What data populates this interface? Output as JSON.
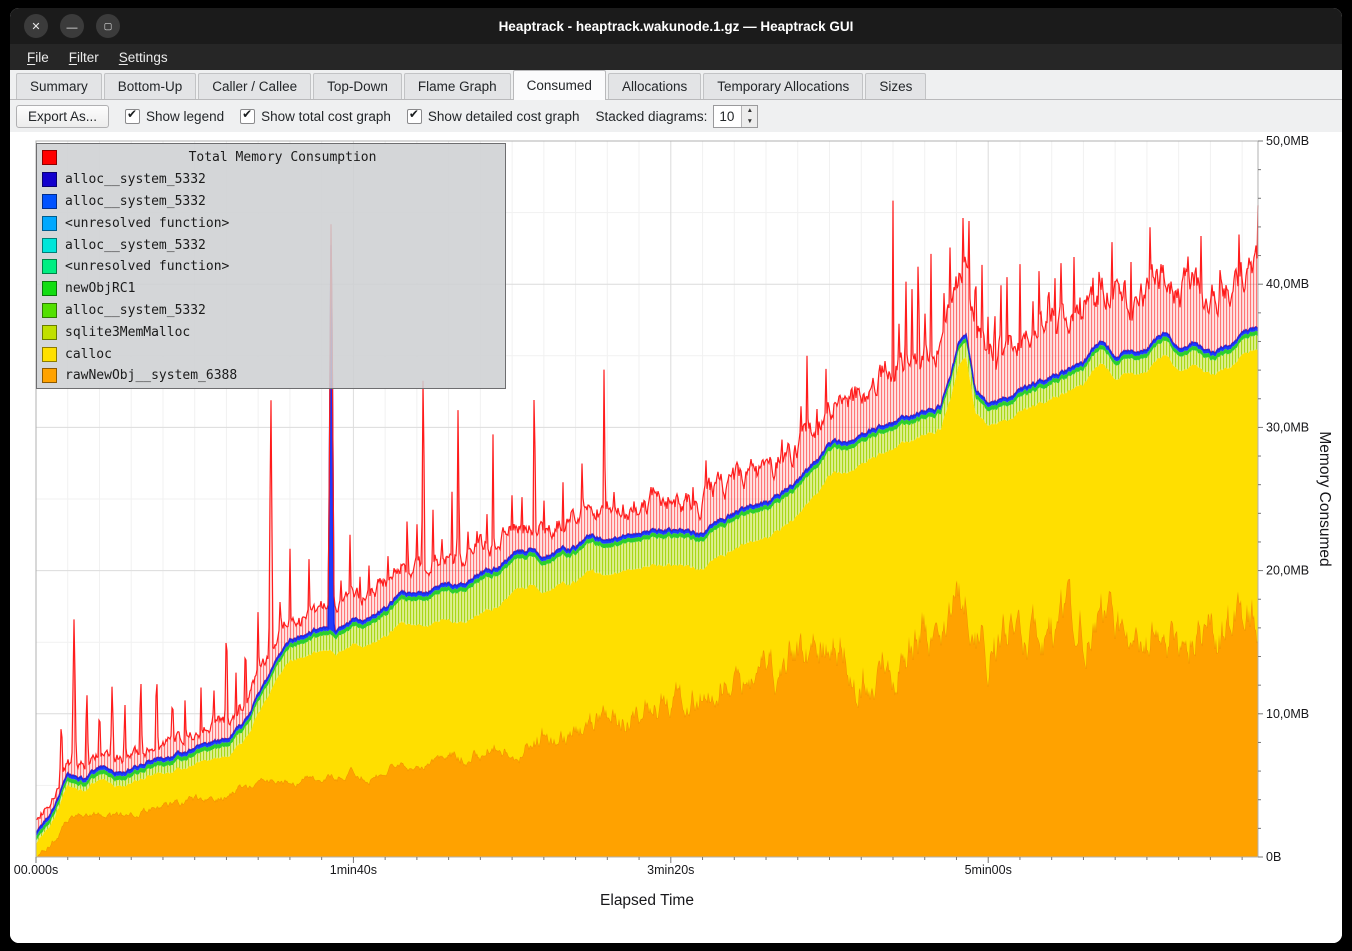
{
  "window": {
    "title": "Heaptrack - heaptrack.wakunode.1.gz — Heaptrack GUI",
    "controls": {
      "close": "✕",
      "minimize": "—",
      "maximize": "▢"
    }
  },
  "menu": {
    "items": [
      {
        "key": "F",
        "rest": "ile"
      },
      {
        "key": "F",
        "rest": "ilter"
      },
      {
        "key": "S",
        "rest": "ettings"
      }
    ]
  },
  "tabs": [
    {
      "label": "Summary"
    },
    {
      "label": "Bottom-Up"
    },
    {
      "label": "Caller / Callee"
    },
    {
      "label": "Top-Down"
    },
    {
      "label": "Flame Graph"
    },
    {
      "label": "Consumed",
      "active": true
    },
    {
      "label": "Allocations"
    },
    {
      "label": "Temporary Allocations"
    },
    {
      "label": "Sizes"
    }
  ],
  "toolbar": {
    "export_label": "Export As...",
    "checkboxes": [
      {
        "label": "Show legend",
        "checked": true
      },
      {
        "label": "Show total cost graph",
        "checked": true
      },
      {
        "label": "Show detailed cost graph",
        "checked": true
      }
    ],
    "stacked_label": "Stacked diagrams:",
    "stacked_value": "10",
    "spin_up": "▲",
    "spin_down": "▼"
  },
  "legend": {
    "title": "Total Memory Consumption",
    "title_color": "#ff0000",
    "items": [
      {
        "label": "alloc__system_5332",
        "color": "#1300cd"
      },
      {
        "label": "alloc__system_5332",
        "color": "#0052ff"
      },
      {
        "label": "<unresolved function>",
        "color": "#00a8ff"
      },
      {
        "label": "alloc__system_5332",
        "color": "#00e6d9"
      },
      {
        "label": "<unresolved function>",
        "color": "#00ee82"
      },
      {
        "label": "newObjRC1",
        "color": "#12dd12"
      },
      {
        "label": "alloc__system_5332",
        "color": "#52e000"
      },
      {
        "label": "sqlite3MemMalloc",
        "color": "#c0e000"
      },
      {
        "label": "calloc",
        "color": "#ffe000"
      },
      {
        "label": "rawNewObj__system_6388",
        "color": "#ffa200"
      }
    ]
  },
  "axes": {
    "x_title": "Elapsed Time",
    "y_title": "Memory Consumed",
    "x_ticks": [
      {
        "label": "00.000s",
        "t": 0
      },
      {
        "label": "1min40s",
        "t": 100
      },
      {
        "label": "3min20s",
        "t": 200
      },
      {
        "label": "5min00s",
        "t": 300
      }
    ],
    "y_ticks": [
      {
        "label": "0B",
        "mb": 0
      },
      {
        "label": "10,0MB",
        "mb": 10
      },
      {
        "label": "20,0MB",
        "mb": 20
      },
      {
        "label": "30,0MB",
        "mb": 30
      },
      {
        "label": "40,0MB",
        "mb": 40
      },
      {
        "label": "50,0MB",
        "mb": 50
      }
    ]
  },
  "chart_data": {
    "type": "area",
    "stacked": true,
    "t_max": 385,
    "y_max_mb": 50,
    "layer_order_bottom_to_top": [
      "rawNewObj__system_6388",
      "calloc",
      "sqlite3MemMalloc",
      "greens and cyans (thin bands)",
      "alloc__system blues (thin line)",
      "Total Memory Consumption (red, spiky)"
    ],
    "orange_top_mb": [
      [
        0,
        0
      ],
      [
        3,
        0.6
      ],
      [
        8,
        2
      ],
      [
        12,
        3
      ],
      [
        20,
        3
      ],
      [
        25,
        2.6
      ],
      [
        30,
        3
      ],
      [
        40,
        3.5
      ],
      [
        50,
        4
      ],
      [
        60,
        4.2
      ],
      [
        65,
        5
      ],
      [
        70,
        5
      ],
      [
        75,
        5.5
      ],
      [
        80,
        5
      ],
      [
        85,
        5.5
      ],
      [
        90,
        5.2
      ],
      [
        95,
        5.6
      ],
      [
        100,
        6
      ],
      [
        105,
        5.6
      ],
      [
        110,
        6
      ],
      [
        115,
        6.6
      ],
      [
        120,
        6.2
      ],
      [
        125,
        6.6
      ],
      [
        130,
        7
      ],
      [
        140,
        7.2
      ],
      [
        145,
        8
      ],
      [
        150,
        7.6
      ],
      [
        155,
        8
      ],
      [
        160,
        8.6
      ],
      [
        165,
        8.2
      ],
      [
        170,
        9
      ],
      [
        175,
        9.2
      ],
      [
        180,
        9.6
      ],
      [
        185,
        10
      ],
      [
        190,
        10.5
      ],
      [
        195,
        11
      ],
      [
        200,
        11.2
      ],
      [
        205,
        11.6
      ],
      [
        210,
        12
      ],
      [
        215,
        12.5
      ],
      [
        220,
        13
      ],
      [
        225,
        12.2
      ],
      [
        230,
        12.6
      ],
      [
        235,
        13.2
      ],
      [
        240,
        14
      ],
      [
        245,
        15
      ],
      [
        250,
        16
      ],
      [
        253,
        14.2
      ],
      [
        256,
        15
      ],
      [
        260,
        13.2
      ],
      [
        265,
        13.6
      ],
      [
        270,
        13.2
      ],
      [
        275,
        14
      ],
      [
        280,
        16
      ],
      [
        285,
        17
      ],
      [
        290,
        18
      ],
      [
        293,
        18.6
      ],
      [
        296,
        16.6
      ],
      [
        300,
        14.2
      ],
      [
        305,
        15
      ],
      [
        310,
        16
      ],
      [
        315,
        15.2
      ],
      [
        320,
        16
      ],
      [
        325,
        16.8
      ],
      [
        330,
        16
      ],
      [
        335,
        16.8
      ],
      [
        340,
        16
      ],
      [
        345,
        15.2
      ],
      [
        350,
        16
      ],
      [
        355,
        16.8
      ],
      [
        360,
        15.2
      ],
      [
        365,
        16
      ],
      [
        370,
        15.6
      ],
      [
        375,
        16
      ],
      [
        380,
        16.4
      ],
      [
        385,
        16.2
      ]
    ],
    "yellow_top_mb": [
      [
        0,
        1
      ],
      [
        5,
        2.5
      ],
      [
        10,
        5
      ],
      [
        15,
        4.6
      ],
      [
        20,
        5.5
      ],
      [
        25,
        5
      ],
      [
        30,
        5.2
      ],
      [
        35,
        5.6
      ],
      [
        40,
        6
      ],
      [
        45,
        6.1
      ],
      [
        50,
        6.5
      ],
      [
        55,
        6.6
      ],
      [
        60,
        7
      ],
      [
        65,
        8
      ],
      [
        70,
        10
      ],
      [
        75,
        12
      ],
      [
        80,
        13.5
      ],
      [
        85,
        14
      ],
      [
        90,
        14.5
      ],
      [
        95,
        14.2
      ],
      [
        100,
        15
      ],
      [
        105,
        15
      ],
      [
        110,
        15.5
      ],
      [
        115,
        16.5
      ],
      [
        120,
        16
      ],
      [
        125,
        16.2
      ],
      [
        130,
        16.5
      ],
      [
        135,
        16.5
      ],
      [
        140,
        17
      ],
      [
        145,
        17.5
      ],
      [
        150,
        18.5
      ],
      [
        155,
        19
      ],
      [
        160,
        18.6
      ],
      [
        165,
        19
      ],
      [
        170,
        19.2
      ],
      [
        175,
        20
      ],
      [
        180,
        19.6
      ],
      [
        185,
        20
      ],
      [
        190,
        20.2
      ],
      [
        195,
        20.5
      ],
      [
        200,
        20.5
      ],
      [
        205,
        20.2
      ],
      [
        210,
        20.2
      ],
      [
        215,
        21
      ],
      [
        220,
        21.5
      ],
      [
        225,
        22
      ],
      [
        230,
        22.2
      ],
      [
        235,
        23
      ],
      [
        240,
        24
      ],
      [
        245,
        25
      ],
      [
        250,
        26.5
      ],
      [
        255,
        27
      ],
      [
        260,
        27.5
      ],
      [
        265,
        28
      ],
      [
        270,
        28.5
      ],
      [
        275,
        29
      ],
      [
        280,
        29.5
      ],
      [
        285,
        30
      ],
      [
        288,
        32
      ],
      [
        291,
        34.5
      ],
      [
        293,
        34.8
      ],
      [
        296,
        31
      ],
      [
        300,
        30
      ],
      [
        305,
        30.5
      ],
      [
        310,
        31
      ],
      [
        315,
        31.5
      ],
      [
        320,
        32
      ],
      [
        325,
        32.5
      ],
      [
        330,
        33
      ],
      [
        335,
        34.5
      ],
      [
        340,
        33.5
      ],
      [
        345,
        33.8
      ],
      [
        350,
        34
      ],
      [
        355,
        35
      ],
      [
        360,
        34
      ],
      [
        365,
        34.5
      ],
      [
        370,
        33.6
      ],
      [
        375,
        34
      ],
      [
        380,
        35
      ],
      [
        385,
        35.6
      ]
    ],
    "green_thickness_mb": [
      [
        0,
        0.5
      ],
      [
        40,
        0.8
      ],
      [
        60,
        1
      ],
      [
        80,
        1.2
      ],
      [
        100,
        1.5
      ],
      [
        120,
        2
      ],
      [
        140,
        2.6
      ],
      [
        160,
        2.2
      ],
      [
        180,
        2.2
      ],
      [
        200,
        2.2
      ],
      [
        220,
        2.3
      ],
      [
        240,
        2.2
      ],
      [
        260,
        1.8
      ],
      [
        280,
        1.4
      ],
      [
        300,
        1.3
      ],
      [
        340,
        1.3
      ],
      [
        385,
        1.3
      ]
    ],
    "green_band_mb": 0.3,
    "blue_thickness_mb": 0.25,
    "red_extra_mb": [
      [
        0,
        0.8
      ],
      [
        60,
        1.2
      ],
      [
        100,
        1.6
      ],
      [
        150,
        2
      ],
      [
        200,
        2
      ],
      [
        240,
        2.5
      ],
      [
        262,
        3
      ],
      [
        268,
        4
      ],
      [
        275,
        4
      ],
      [
        385,
        4
      ]
    ],
    "red_spikes": [
      [
        8,
        10
      ],
      [
        12,
        17
      ],
      [
        16,
        12
      ],
      [
        20,
        11
      ],
      [
        24,
        12.5
      ],
      [
        28,
        11
      ],
      [
        33,
        13
      ],
      [
        38,
        13.5
      ],
      [
        43,
        12
      ],
      [
        47,
        11.5
      ],
      [
        52,
        12
      ],
      [
        56,
        12.5
      ],
      [
        60,
        17
      ],
      [
        63,
        13
      ],
      [
        66,
        16
      ],
      [
        70,
        18
      ],
      [
        74,
        33
      ],
      [
        77,
        20
      ],
      [
        80,
        22
      ],
      [
        83,
        19
      ],
      [
        86,
        21
      ],
      [
        89,
        20
      ],
      [
        93,
        29
      ],
      [
        96,
        21
      ],
      [
        99,
        24
      ],
      [
        102,
        21
      ],
      [
        105,
        22
      ],
      [
        108,
        20
      ],
      [
        111,
        23
      ],
      [
        114,
        21
      ],
      [
        117,
        26
      ],
      [
        120,
        24
      ],
      [
        122,
        35.5
      ],
      [
        125,
        26
      ],
      [
        128,
        24
      ],
      [
        131,
        27
      ],
      [
        133,
        32.5
      ],
      [
        136,
        25
      ],
      [
        139,
        24
      ],
      [
        142,
        26
      ],
      [
        144,
        30
      ],
      [
        147,
        25
      ],
      [
        150,
        26
      ],
      [
        153,
        28
      ],
      [
        157,
        35
      ],
      [
        160,
        26
      ],
      [
        163,
        25
      ],
      [
        166,
        27
      ],
      [
        169,
        26
      ],
      [
        172,
        28
      ],
      [
        175,
        27
      ],
      [
        179,
        35.5
      ],
      [
        182,
        28
      ],
      [
        185,
        26
      ],
      [
        188,
        25
      ],
      [
        192,
        25.5
      ],
      [
        195,
        24
      ],
      [
        198,
        26
      ],
      [
        201,
        25
      ],
      [
        204,
        27
      ],
      [
        207,
        26
      ],
      [
        211,
        30
      ],
      [
        214,
        28
      ],
      [
        217,
        26
      ],
      [
        220,
        26
      ],
      [
        223,
        25.5
      ],
      [
        226,
        26
      ],
      [
        229,
        27
      ],
      [
        232,
        28
      ],
      [
        235,
        30
      ],
      [
        238,
        29
      ],
      [
        241,
        32
      ],
      [
        243,
        38
      ],
      [
        246,
        33
      ],
      [
        249,
        37.5
      ],
      [
        252,
        33
      ],
      [
        255,
        31
      ],
      [
        257,
        30.5
      ],
      [
        260,
        32
      ],
      [
        263,
        31
      ],
      [
        266,
        33
      ],
      [
        270,
        46
      ],
      [
        272,
        41
      ],
      [
        274,
        44
      ],
      [
        276,
        40
      ],
      [
        278,
        46
      ],
      [
        280,
        41
      ],
      [
        282,
        43
      ],
      [
        284,
        40
      ],
      [
        286,
        42
      ],
      [
        288,
        44
      ],
      [
        290,
        46.5
      ],
      [
        292,
        47
      ],
      [
        294,
        46.5
      ],
      [
        296,
        46
      ],
      [
        298,
        43
      ],
      [
        300,
        40
      ],
      [
        302,
        43
      ],
      [
        304,
        41
      ],
      [
        306,
        43.5
      ],
      [
        308,
        40
      ],
      [
        310,
        42
      ],
      [
        312,
        40
      ],
      [
        314,
        43
      ],
      [
        316,
        41
      ],
      [
        319,
        45.5
      ],
      [
        321,
        42
      ],
      [
        323,
        44
      ],
      [
        325,
        41
      ],
      [
        327,
        43
      ],
      [
        329,
        42
      ],
      [
        331,
        44
      ],
      [
        333,
        41
      ],
      [
        335,
        44.5
      ],
      [
        337,
        42
      ],
      [
        339,
        43
      ],
      [
        341,
        40
      ],
      [
        343,
        44
      ],
      [
        345,
        42
      ],
      [
        347,
        43
      ],
      [
        349,
        41
      ],
      [
        351,
        45
      ],
      [
        353,
        42
      ],
      [
        355,
        44
      ],
      [
        357,
        41
      ],
      [
        359,
        43
      ],
      [
        361,
        40
      ],
      [
        363,
        44
      ],
      [
        365,
        42
      ],
      [
        367,
        45
      ],
      [
        369,
        41
      ],
      [
        371,
        44
      ],
      [
        373,
        42
      ],
      [
        375,
        43
      ],
      [
        377,
        41
      ],
      [
        379,
        44
      ],
      [
        381,
        42
      ],
      [
        383,
        45
      ],
      [
        385,
        45.5
      ]
    ],
    "blue_spikes": [
      [
        93,
        28.5
      ]
    ],
    "colors": {
      "orange": "#ffa200",
      "orange_edge": "#ef8e00",
      "yellow": "#ffdf00",
      "green": "#2ccf2c",
      "blue": "#1d3cff",
      "blue_edge": "#1626e8",
      "red": "#ff1c1c"
    }
  }
}
